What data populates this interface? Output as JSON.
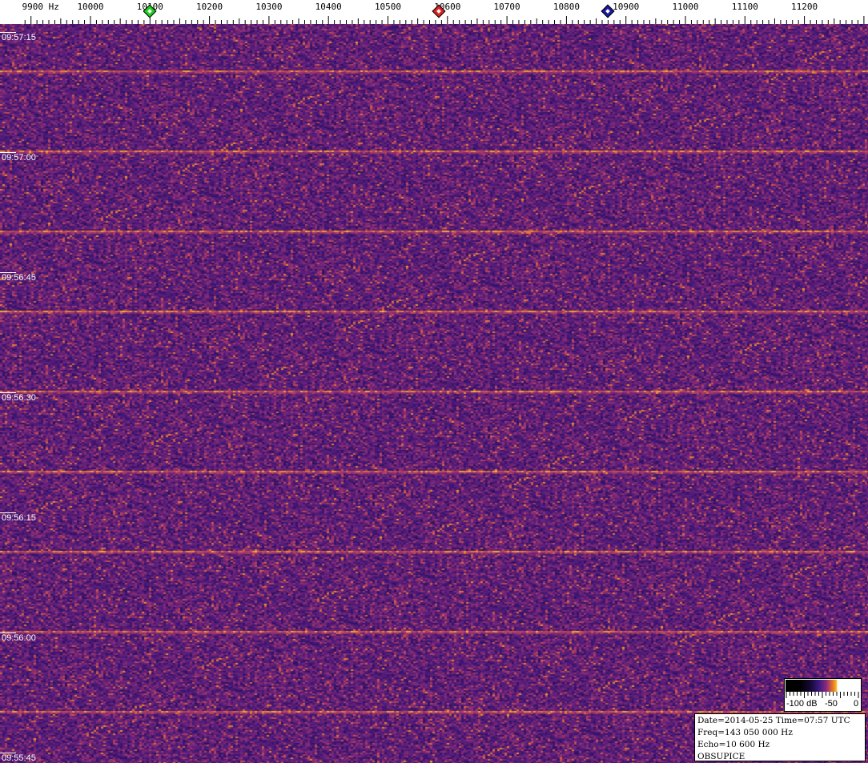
{
  "frequency_axis": {
    "unit": "Hz",
    "labels": [
      "9900 Hz",
      "10000",
      "10100",
      "10200",
      "10300",
      "10400",
      "10500",
      "10600",
      "10700",
      "10800",
      "10900",
      "11000",
      "11100",
      "11200"
    ]
  },
  "time_axis": {
    "labels": [
      "09:57:15",
      "09:57:00",
      "09:56:45",
      "09:56:30",
      "09:56:15",
      "09:56:00",
      "09:55:45"
    ]
  },
  "markers": [
    {
      "name": "green-marker",
      "color": "#22cc22"
    },
    {
      "name": "red-marker",
      "color": "#dd2222"
    },
    {
      "name": "blue-marker",
      "color": "#1a1aa0"
    }
  ],
  "color_scale": {
    "labels": [
      "-100 dB",
      "-50",
      "0"
    ]
  },
  "info": {
    "date_time": "Date=2014-05-25 Time=07:57 UTC",
    "freq": "Freq=143 050 000 Hz",
    "echo": "Echo=10 600 Hz",
    "station": "OBSUPICE"
  },
  "colors": {
    "background": "#3a1670",
    "signal": "#f0a020"
  }
}
